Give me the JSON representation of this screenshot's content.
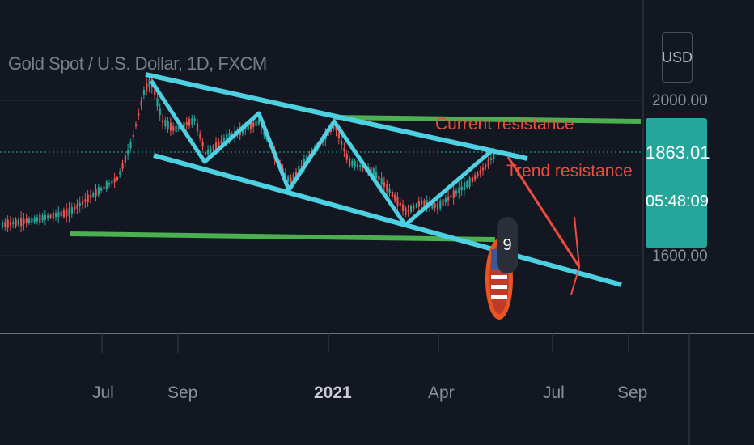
{
  "chart_data": {
    "type": "candlestick",
    "title": "Gold Spot / U.S. Dollar, 1D, FXCM",
    "currency": "USD",
    "last_price": "1863.01",
    "countdown": "05:48:09",
    "y_ticks": [
      "2000.00",
      "1600.00"
    ],
    "x_ticks": [
      "Jul",
      "Sep",
      "2021",
      "Apr",
      "Jul",
      "Sep"
    ],
    "annotations": [
      "Current resistance",
      "Trend resistance"
    ],
    "event_badge_count": "9",
    "colors": {
      "background": "#131722",
      "up_candle": "#26a69a",
      "down_candle": "#ef5350",
      "channel_lines": "#4dd0e1",
      "support_resistance": "#4caf50",
      "annotation": "#ef4b3f",
      "price_tag": "#26a69a"
    }
  }
}
